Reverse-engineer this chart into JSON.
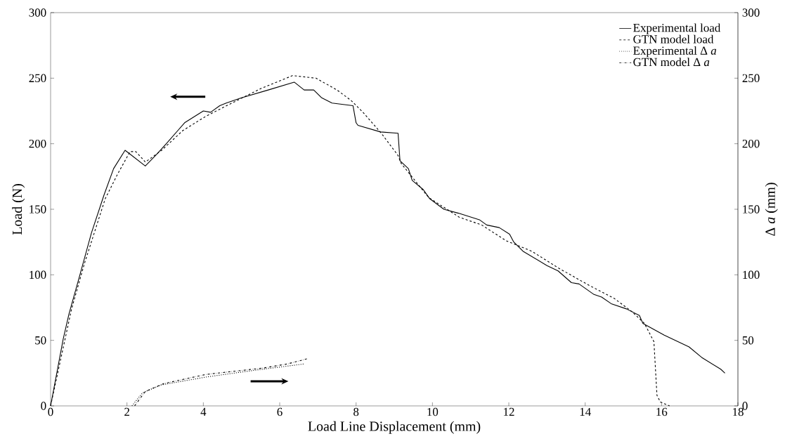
{
  "chart_data": {
    "type": "line",
    "xlabel": "Load Line Displacement  (mm)",
    "ylabel": "Load (N)",
    "y2label": "Δ *a*  (mm)",
    "xlim": [
      0,
      18
    ],
    "ylim": [
      0,
      300
    ],
    "y2lim": [
      0,
      300
    ],
    "xticks": [
      0,
      2,
      4,
      6,
      8,
      10,
      12,
      14,
      16,
      18
    ],
    "yticks": [
      0,
      50,
      100,
      150,
      200,
      250,
      300
    ],
    "y2ticks": [
      0,
      50,
      100,
      150,
      200,
      250,
      300
    ],
    "legend": "top right",
    "series": [
      {
        "name": "Experimental load",
        "color": "#000000",
        "line_style": "solid",
        "axis": "y",
        "x": [
          0,
          0.33,
          0.48,
          0.74,
          1.07,
          1.4,
          1.65,
          1.95,
          2.04,
          2.48,
          2.78,
          3.03,
          3.51,
          4.0,
          4.19,
          4.43,
          4.6,
          5.0,
          5.7,
          6.38,
          6.64,
          6.89,
          7.1,
          7.37,
          7.92,
          8.0,
          8.05,
          8.64,
          9.1,
          9.15,
          9.37,
          9.47,
          9.76,
          9.93,
          10.3,
          10.68,
          11.23,
          11.42,
          11.75,
          12.02,
          12.13,
          12.37,
          13.0,
          13.29,
          13.64,
          13.84,
          14.23,
          14.43,
          14.68,
          15.08,
          15.42,
          15.51,
          16.07,
          16.72,
          17.05,
          17.55,
          17.66
        ],
        "values": [
          0,
          51,
          70,
          97,
          132,
          161,
          181,
          195,
          193,
          183,
          192,
          200,
          216,
          225,
          224,
          229,
          231,
          235,
          241,
          247,
          241,
          241,
          235,
          231,
          229,
          216,
          214,
          209,
          208,
          187,
          181,
          172,
          165,
          158,
          150,
          147,
          142,
          138,
          136,
          131,
          125,
          118,
          107,
          103,
          94,
          93,
          85,
          83,
          78,
          74,
          69,
          63,
          54,
          45,
          37,
          28,
          25
        ]
      },
      {
        "name": "GTN model load",
        "color": "#000000",
        "line_style": "dashed",
        "axis": "y",
        "x": [
          0,
          0.55,
          0.88,
          1.43,
          1.74,
          2.08,
          2.23,
          2.39,
          2.48,
          2.91,
          3.46,
          4.07,
          4.61,
          5.5,
          6.34,
          6.95,
          7.5,
          7.87,
          8.18,
          8.66,
          9.1,
          9.18,
          9.9,
          10.7,
          11.29,
          11.93,
          12.6,
          13.31,
          14.1,
          14.76,
          15.22,
          15.55,
          15.8,
          15.88,
          15.97,
          16.21
        ],
        "values": [
          0,
          74,
          108,
          158,
          176,
          194,
          194,
          189,
          186,
          195,
          210,
          221,
          229,
          242,
          252,
          250,
          241,
          233,
          224,
          208,
          191,
          185,
          159,
          144,
          138,
          126,
          118,
          105,
          92,
          82,
          72,
          63,
          49,
          8,
          3,
          0
        ]
      },
      {
        "name": "Experimental Δ *a*",
        "color": "#000000",
        "line_style": "dotted",
        "axis": "y2",
        "x": [
          2.13,
          2.41,
          2.9,
          4.07,
          5.3,
          6.64
        ],
        "values": [
          0,
          10,
          16,
          22,
          27,
          32
        ]
      },
      {
        "name": "GTN model Δ *a*",
        "color": "#000000",
        "line_style": "dashdot",
        "axis": "y2",
        "x": [
          2.2,
          2.48,
          2.96,
          4.07,
          5.6,
          6.2,
          6.73
        ],
        "values": [
          0,
          11,
          17,
          24,
          29,
          32,
          36
        ]
      }
    ]
  }
}
